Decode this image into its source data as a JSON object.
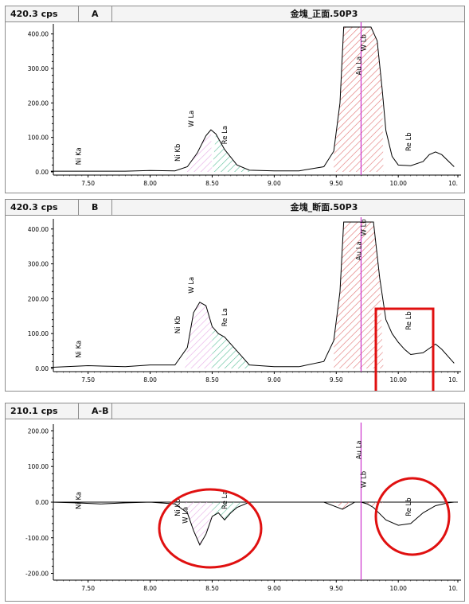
{
  "panels": [
    {
      "cps": "420.3 cps",
      "tag": "A",
      "title": "金塊_正面.50P3",
      "chart_data": {
        "type": "line",
        "x": [
          7.2,
          7.5,
          7.8,
          8.0,
          8.2,
          8.3,
          8.38,
          8.45,
          8.49,
          8.53,
          8.6,
          8.7,
          8.8,
          9.0,
          9.2,
          9.4,
          9.48,
          9.53,
          9.56,
          9.6,
          9.7,
          9.78,
          9.83,
          9.87,
          9.9,
          9.95,
          10.0,
          10.1,
          10.2,
          10.25,
          10.3,
          10.35,
          10.45
        ],
        "y": [
          2,
          2,
          2,
          4,
          3,
          15,
          55,
          105,
          122,
          110,
          65,
          20,
          5,
          3,
          3,
          15,
          60,
          200,
          420,
          420,
          420,
          420,
          380,
          240,
          120,
          45,
          20,
          18,
          30,
          50,
          58,
          50,
          15
        ],
        "xlim": [
          7.22,
          10.48
        ],
        "ylim": [
          0,
          420
        ],
        "xticks": [
          "7.50",
          "8.00",
          "8.50",
          "9.00",
          "9.50",
          "10.00",
          "10."
        ],
        "yticks": [
          "0.00",
          "100.00",
          "200.00",
          "300.00",
          "400.00"
        ],
        "labels": [
          "Ni Ka",
          "Ni Kb",
          "W La",
          "Re La",
          "Au La",
          "W Lb",
          "Re Lb"
        ]
      }
    },
    {
      "cps": "420.3 cps",
      "tag": "B",
      "title": "金塊_断面.50P3",
      "chart_data": {
        "type": "line",
        "x": [
          7.2,
          7.5,
          7.8,
          8.0,
          8.2,
          8.3,
          8.35,
          8.4,
          8.45,
          8.5,
          8.55,
          8.6,
          8.7,
          8.8,
          9.0,
          9.2,
          9.4,
          9.48,
          9.53,
          9.56,
          9.6,
          9.7,
          9.8,
          9.85,
          9.9,
          9.95,
          10.0,
          10.05,
          10.1,
          10.2,
          10.3,
          10.35,
          10.45
        ],
        "y": [
          3,
          8,
          5,
          10,
          10,
          60,
          160,
          190,
          180,
          120,
          100,
          90,
          50,
          10,
          5,
          5,
          20,
          80,
          220,
          420,
          420,
          420,
          420,
          260,
          140,
          100,
          75,
          55,
          40,
          45,
          70,
          55,
          15
        ],
        "xlim": [
          7.22,
          10.48
        ],
        "ylim": [
          0,
          420
        ],
        "xticks": [
          "7.50",
          "8.00",
          "8.50",
          "9.00",
          "9.50",
          "10.00",
          "10."
        ],
        "yticks": [
          "0.00",
          "100.00",
          "200.00",
          "300.00",
          "400.00"
        ],
        "labels": [
          "Ni Ka",
          "Ni Kb",
          "W La",
          "Re La",
          "Au La",
          "W Lb",
          "Re Lb"
        ]
      }
    },
    {
      "cps": "210.1 cps",
      "tag": "A-B",
      "title": "",
      "chart_data": {
        "type": "line",
        "x": [
          7.2,
          7.4,
          7.6,
          7.8,
          8.0,
          8.2,
          8.3,
          8.35,
          8.4,
          8.45,
          8.5,
          8.55,
          8.6,
          8.65,
          8.7,
          8.8,
          9.0,
          9.4,
          9.55,
          9.6,
          9.65,
          9.7,
          9.75,
          9.8,
          9.9,
          10.0,
          10.1,
          10.2,
          10.3,
          10.4,
          10.45
        ],
        "y": [
          0,
          -2,
          -5,
          -2,
          0,
          -5,
          -30,
          -80,
          -120,
          -90,
          -40,
          -30,
          -50,
          -30,
          -15,
          0,
          0,
          0,
          -20,
          -10,
          0,
          0,
          -5,
          -15,
          -50,
          -65,
          -60,
          -30,
          -10,
          -2,
          0
        ],
        "xlim": [
          7.22,
          10.48
        ],
        "ylim": [
          -210,
          210
        ],
        "xticks": [
          "7.50",
          "8.00",
          "8.50",
          "9.00",
          "9.50",
          "10.00",
          "10."
        ],
        "yticks": [
          "-200.00",
          "-100.00",
          "0.00",
          "100.00",
          "200.00"
        ],
        "labels": [
          "Ni Ka",
          "Ni Kb",
          "W La",
          "Re La",
          "Au La",
          "W Lb",
          "Re Lb"
        ]
      }
    }
  ],
  "colors": {
    "line": "#000000",
    "pink_hatch": "#e6a8e6",
    "green_hatch": "#5cc09a",
    "red_hatch": "#e07070",
    "marker": "#cc33cc",
    "highlight": "#e01010"
  }
}
